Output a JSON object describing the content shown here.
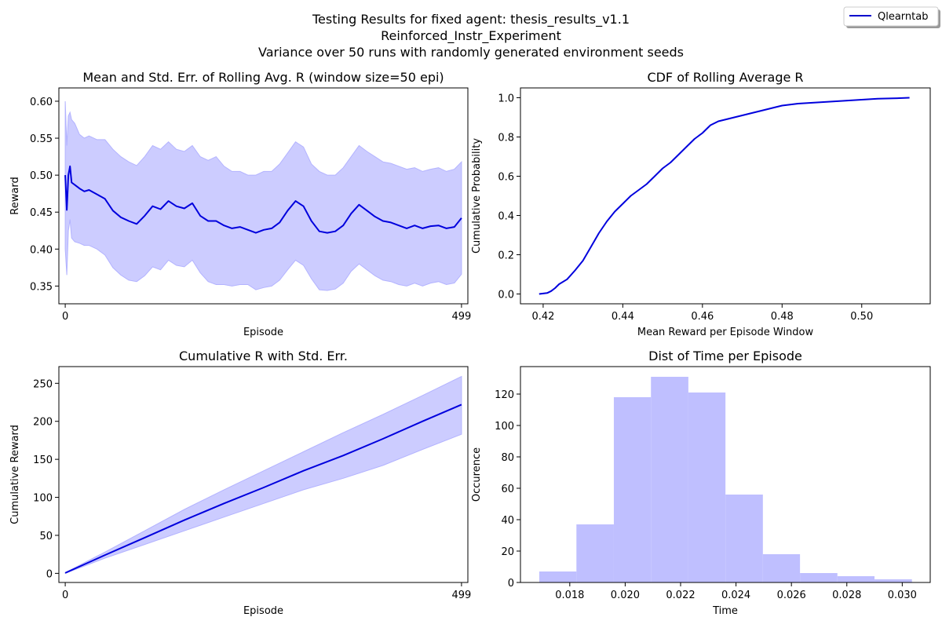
{
  "figure": {
    "suptitle": [
      "Testing Results for fixed agent: thesis_results_v1.1",
      "Reinforced_Instr_Experiment",
      "Variance over 50 runs with randomly generated environment seeds"
    ],
    "legend": {
      "label": "Qlearntab",
      "color": "#0000cc",
      "placement": "top-right"
    }
  },
  "chart_data": [
    {
      "type": "line",
      "title": "Mean and Std. Err. of Rolling Avg. R (window size=50 epi)",
      "xlabel": "Episode",
      "ylabel": "Reward",
      "xlim": [
        -8,
        507
      ],
      "ylim": [
        0.326,
        0.618
      ],
      "xticks": [
        0,
        499
      ],
      "yticks": [
        0.35,
        0.4,
        0.45,
        0.5,
        0.55,
        0.6
      ],
      "ytick_labels": [
        "0.35",
        "0.40",
        "0.45",
        "0.50",
        "0.55",
        "0.60"
      ],
      "line_color": "#0000dd",
      "band_color": "#ccccff",
      "x": [
        0,
        2,
        4,
        6,
        8,
        12,
        18,
        24,
        30,
        40,
        50,
        60,
        70,
        80,
        90,
        100,
        110,
        120,
        130,
        140,
        150,
        160,
        170,
        180,
        190,
        200,
        210,
        220,
        230,
        240,
        250,
        260,
        270,
        280,
        290,
        300,
        310,
        320,
        330,
        340,
        350,
        360,
        370,
        380,
        390,
        400,
        410,
        420,
        430,
        440,
        450,
        460,
        470,
        480,
        490,
        499
      ],
      "mean": [
        0.5,
        0.453,
        0.5,
        0.512,
        0.49,
        0.487,
        0.482,
        0.478,
        0.48,
        0.474,
        0.468,
        0.452,
        0.443,
        0.438,
        0.434,
        0.445,
        0.458,
        0.454,
        0.465,
        0.458,
        0.455,
        0.462,
        0.445,
        0.438,
        0.438,
        0.432,
        0.428,
        0.43,
        0.426,
        0.422,
        0.426,
        0.428,
        0.436,
        0.452,
        0.465,
        0.458,
        0.438,
        0.424,
        0.422,
        0.424,
        0.432,
        0.448,
        0.46,
        0.452,
        0.444,
        0.438,
        0.436,
        0.432,
        0.428,
        0.432,
        0.428,
        0.431,
        0.432,
        0.428,
        0.43,
        0.442
      ],
      "upper": [
        0.6,
        0.54,
        0.58,
        0.585,
        0.575,
        0.57,
        0.555,
        0.55,
        0.553,
        0.548,
        0.548,
        0.535,
        0.525,
        0.518,
        0.513,
        0.525,
        0.54,
        0.535,
        0.545,
        0.535,
        0.532,
        0.54,
        0.525,
        0.52,
        0.525,
        0.512,
        0.505,
        0.505,
        0.5,
        0.5,
        0.505,
        0.505,
        0.515,
        0.53,
        0.545,
        0.538,
        0.515,
        0.505,
        0.5,
        0.5,
        0.51,
        0.525,
        0.54,
        0.532,
        0.525,
        0.518,
        0.516,
        0.512,
        0.508,
        0.51,
        0.505,
        0.508,
        0.51,
        0.505,
        0.508,
        0.518
      ],
      "lower": [
        0.4,
        0.365,
        0.425,
        0.44,
        0.415,
        0.41,
        0.408,
        0.405,
        0.405,
        0.4,
        0.392,
        0.375,
        0.365,
        0.358,
        0.356,
        0.364,
        0.376,
        0.372,
        0.385,
        0.378,
        0.376,
        0.385,
        0.368,
        0.356,
        0.352,
        0.352,
        0.35,
        0.352,
        0.352,
        0.345,
        0.348,
        0.35,
        0.358,
        0.372,
        0.385,
        0.378,
        0.36,
        0.345,
        0.344,
        0.346,
        0.354,
        0.37,
        0.38,
        0.372,
        0.364,
        0.358,
        0.356,
        0.352,
        0.35,
        0.354,
        0.35,
        0.354,
        0.356,
        0.352,
        0.354,
        0.366
      ]
    },
    {
      "type": "line",
      "title": "CDF of Rolling Average R",
      "xlabel": "Mean Reward per Episode Window",
      "ylabel": "Cumulative Probability",
      "xlim": [
        0.4143,
        0.5172
      ],
      "ylim": [
        -0.05,
        1.05
      ],
      "xticks": [
        0.42,
        0.44,
        0.46,
        0.48,
        0.5
      ],
      "xtick_labels": [
        "0.42",
        "0.44",
        "0.46",
        "0.48",
        "0.50"
      ],
      "yticks": [
        0.0,
        0.2,
        0.4,
        0.6,
        0.8,
        1.0
      ],
      "ytick_labels": [
        "0.0",
        "0.2",
        "0.4",
        "0.6",
        "0.8",
        "1.0"
      ],
      "line_color": "#0000dd",
      "x": [
        0.419,
        0.421,
        0.422,
        0.423,
        0.424,
        0.426,
        0.428,
        0.43,
        0.432,
        0.434,
        0.436,
        0.438,
        0.44,
        0.442,
        0.444,
        0.446,
        0.448,
        0.45,
        0.452,
        0.454,
        0.456,
        0.458,
        0.46,
        0.462,
        0.464,
        0.466,
        0.468,
        0.47,
        0.472,
        0.474,
        0.476,
        0.478,
        0.48,
        0.484,
        0.488,
        0.492,
        0.496,
        0.5,
        0.504,
        0.508,
        0.512
      ],
      "y": [
        0.0,
        0.005,
        0.015,
        0.03,
        0.05,
        0.075,
        0.12,
        0.17,
        0.24,
        0.31,
        0.37,
        0.42,
        0.46,
        0.5,
        0.53,
        0.56,
        0.6,
        0.64,
        0.67,
        0.71,
        0.75,
        0.79,
        0.82,
        0.86,
        0.88,
        0.89,
        0.9,
        0.91,
        0.92,
        0.93,
        0.94,
        0.95,
        0.96,
        0.97,
        0.975,
        0.98,
        0.985,
        0.99,
        0.995,
        0.997,
        1.0
      ]
    },
    {
      "type": "line",
      "title": "Cumulative R with Std. Err.",
      "xlabel": "Episode",
      "ylabel": "Cumulative Reward",
      "xlim": [
        -8,
        507
      ],
      "ylim": [
        -12,
        272
      ],
      "xticks": [
        0,
        499
      ],
      "yticks": [
        0,
        50,
        100,
        150,
        200,
        250
      ],
      "ytick_labels": [
        "0",
        "50",
        "100",
        "150",
        "200",
        "250"
      ],
      "line_color": "#0000dd",
      "band_color": "#ccccff",
      "x": [
        0,
        50,
        100,
        150,
        200,
        250,
        300,
        350,
        400,
        450,
        499
      ],
      "mean": [
        0.5,
        24,
        47,
        70,
        92,
        113,
        135,
        155,
        177,
        200,
        222
      ],
      "upper": [
        1,
        28,
        56,
        84,
        110,
        135,
        160,
        185,
        209,
        234,
        259
      ],
      "lower": [
        0,
        20,
        38,
        56,
        74,
        92,
        110,
        125,
        142,
        163,
        183
      ]
    },
    {
      "type": "bar",
      "title": "Dist of Time per Episode",
      "xlabel": "Time",
      "ylabel": "Occurence",
      "xlim": [
        0.01622,
        0.03101
      ],
      "ylim": [
        0,
        137.5
      ],
      "xticks": [
        0.018,
        0.02,
        0.022,
        0.024,
        0.026,
        0.028,
        0.03
      ],
      "xtick_labels": [
        "0.018",
        "0.020",
        "0.022",
        "0.024",
        "0.026",
        "0.028",
        "0.030"
      ],
      "yticks": [
        0,
        20,
        40,
        60,
        80,
        100,
        120
      ],
      "ytick_labels": [
        "0",
        "20",
        "40",
        "60",
        "80",
        "100",
        "120"
      ],
      "bar_color": "#bfbfff",
      "bin_edges": [
        0.0169,
        0.01824,
        0.01959,
        0.02093,
        0.02228,
        0.02362,
        0.02497,
        0.02631,
        0.02766,
        0.029,
        0.03035
      ],
      "values": [
        7,
        37,
        118,
        131,
        121,
        56,
        18,
        6,
        4,
        2
      ]
    }
  ]
}
